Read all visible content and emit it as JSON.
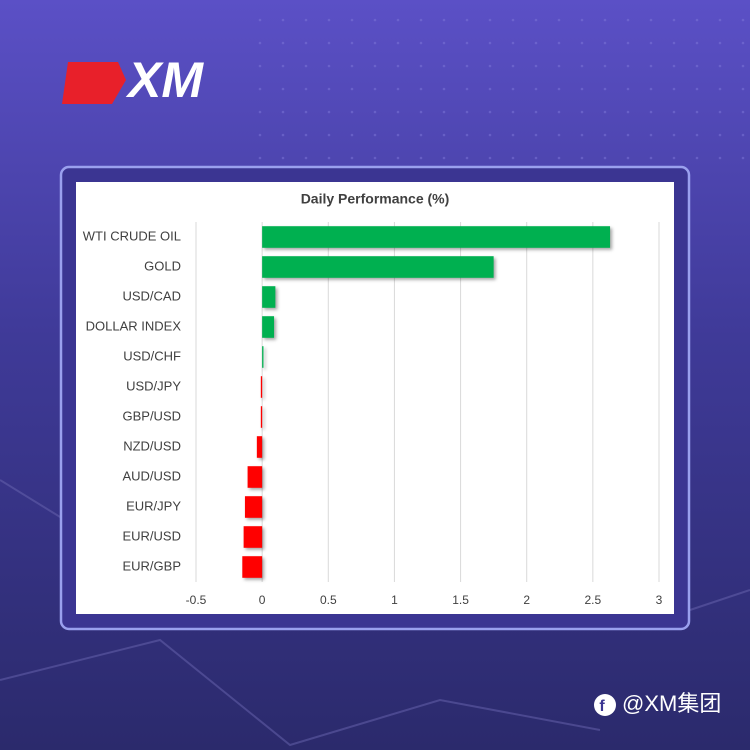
{
  "brand": {
    "logo": "XM",
    "watermark": "@XM集团"
  },
  "chart_data": {
    "type": "bar",
    "orientation": "horizontal",
    "title": "Daily Performance  (%)",
    "categories": [
      "WTI CRUDE OIL",
      "GOLD",
      "USD/CAD",
      "DOLLAR INDEX",
      "USD/CHF",
      "USD/JPY",
      "GBP/USD",
      "NZD/USD",
      "AUD/USD",
      "EUR/JPY",
      "EUR/USD",
      "EUR/GBP"
    ],
    "values": [
      2.63,
      1.75,
      0.1,
      0.09,
      0.01,
      -0.01,
      -0.01,
      -0.04,
      -0.11,
      -0.13,
      -0.14,
      -0.15
    ],
    "colors": [
      "#00b050",
      "#00b050",
      "#00b050",
      "#00b050",
      "#00b050",
      "#ff0000",
      "#ff0000",
      "#ff0000",
      "#ff0000",
      "#ff0000",
      "#ff0000",
      "#ff0000"
    ],
    "xlim": [
      -0.5,
      3
    ],
    "xticks": [
      -0.5,
      0,
      0.5,
      1,
      1.5,
      2,
      2.5,
      3
    ],
    "grid": true
  }
}
